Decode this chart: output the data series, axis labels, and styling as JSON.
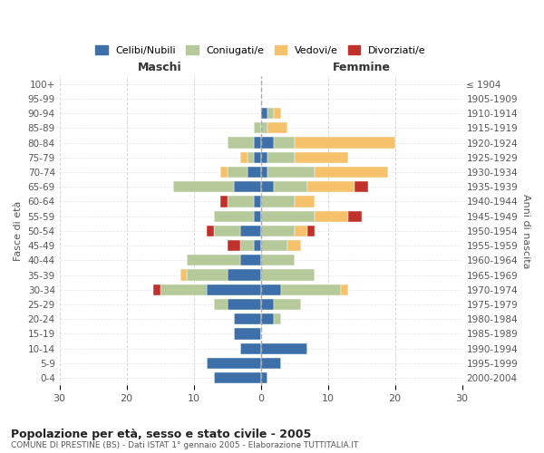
{
  "age_groups": [
    "0-4",
    "5-9",
    "10-14",
    "15-19",
    "20-24",
    "25-29",
    "30-34",
    "35-39",
    "40-44",
    "45-49",
    "50-54",
    "55-59",
    "60-64",
    "65-69",
    "70-74",
    "75-79",
    "80-84",
    "85-89",
    "90-94",
    "95-99",
    "100+"
  ],
  "birth_years": [
    "2000-2004",
    "1995-1999",
    "1990-1994",
    "1985-1989",
    "1980-1984",
    "1975-1979",
    "1970-1974",
    "1965-1969",
    "1960-1964",
    "1955-1959",
    "1950-1954",
    "1945-1949",
    "1940-1944",
    "1935-1939",
    "1930-1934",
    "1925-1929",
    "1920-1924",
    "1915-1919",
    "1910-1914",
    "1905-1909",
    "≤ 1904"
  ],
  "colors": {
    "celibi": "#3d6fa8",
    "coniugati": "#b5c99a",
    "vedovi": "#f5c26b",
    "divorziati": "#c0312b"
  },
  "maschi": {
    "celibi": [
      7,
      8,
      3,
      4,
      4,
      5,
      8,
      5,
      3,
      1,
      3,
      1,
      1,
      4,
      2,
      1,
      1,
      0,
      0,
      0,
      0
    ],
    "coniugati": [
      0,
      0,
      0,
      0,
      0,
      2,
      7,
      6,
      8,
      2,
      4,
      6,
      4,
      9,
      3,
      1,
      4,
      1,
      0,
      0,
      0
    ],
    "vedovi": [
      0,
      0,
      0,
      0,
      0,
      0,
      0,
      1,
      0,
      0,
      0,
      0,
      0,
      0,
      1,
      1,
      0,
      0,
      0,
      0,
      0
    ],
    "divorziati": [
      0,
      0,
      0,
      0,
      0,
      0,
      1,
      0,
      0,
      2,
      1,
      0,
      1,
      0,
      0,
      0,
      0,
      0,
      0,
      0,
      0
    ]
  },
  "femmine": {
    "nubili": [
      1,
      3,
      7,
      0,
      2,
      2,
      3,
      0,
      0,
      0,
      0,
      0,
      0,
      2,
      1,
      1,
      2,
      0,
      1,
      0,
      0
    ],
    "coniugate": [
      0,
      0,
      0,
      0,
      1,
      4,
      9,
      8,
      5,
      4,
      5,
      8,
      5,
      5,
      7,
      4,
      3,
      1,
      1,
      0,
      0
    ],
    "vedove": [
      0,
      0,
      0,
      0,
      0,
      0,
      1,
      0,
      0,
      2,
      2,
      5,
      3,
      7,
      11,
      8,
      15,
      3,
      1,
      0,
      0
    ],
    "divorziate": [
      0,
      0,
      0,
      0,
      0,
      0,
      0,
      0,
      0,
      0,
      1,
      2,
      0,
      2,
      0,
      0,
      0,
      0,
      0,
      0,
      0
    ]
  },
  "xlim": 30,
  "title": "Popolazione per età, sesso e stato civile - 2005",
  "subtitle": "COMUNE DI PRESTINE (BS) - Dati ISTAT 1° gennaio 2005 - Elaborazione TUTTITALIA.IT",
  "xlabel_left": "Maschi",
  "xlabel_right": "Femmine",
  "ylabel_left": "Fasce di età",
  "ylabel_right": "Anni di nascita",
  "legend_labels": [
    "Celibi/Nubili",
    "Coniugati/e",
    "Vedovi/e",
    "Divorziati/e"
  ],
  "bg_color": "#ffffff",
  "grid_color": "#cccccc"
}
